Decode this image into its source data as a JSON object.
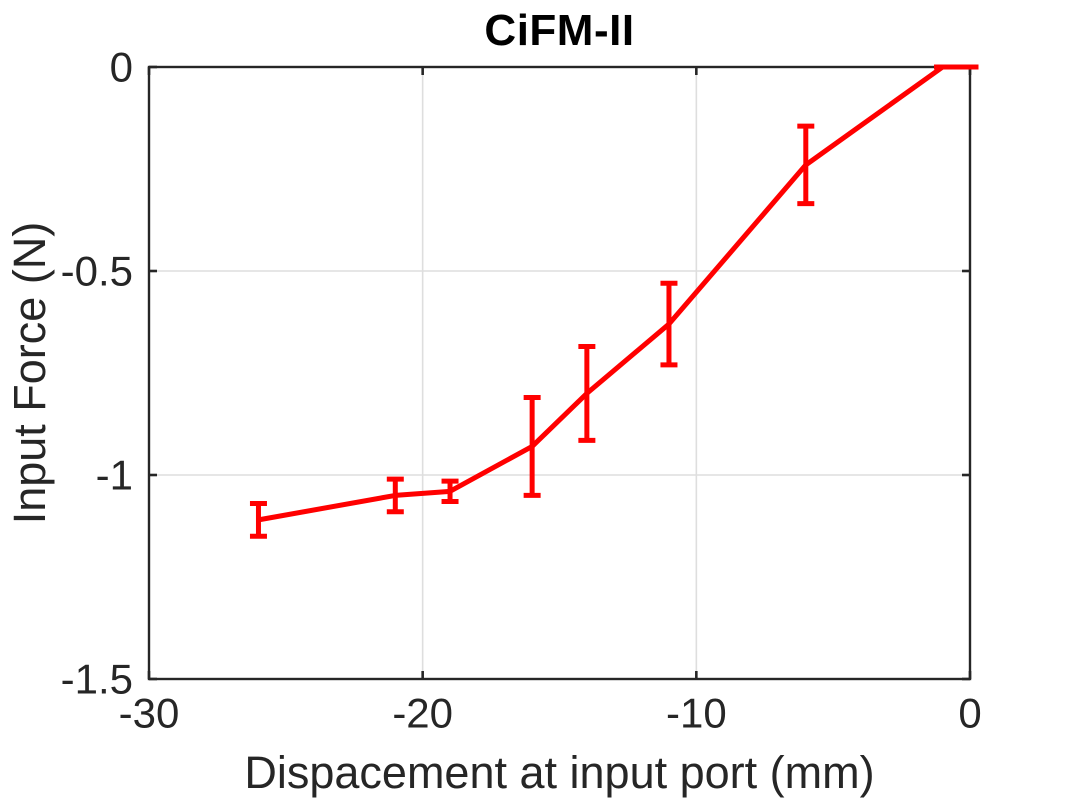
{
  "chart_data": {
    "type": "line",
    "title": "CiFM-II",
    "xlabel": "Dispacement at input port (mm)",
    "ylabel": "Input Force (N)",
    "xlim": [
      -30,
      0
    ],
    "ylim": [
      -1.5,
      0
    ],
    "grid": true,
    "legend": "none",
    "x_ticks": [
      {
        "value": -30,
        "label": "-30"
      },
      {
        "value": -20,
        "label": "-20"
      },
      {
        "value": -10,
        "label": "-10"
      },
      {
        "value": 0,
        "label": "0"
      }
    ],
    "y_ticks": [
      {
        "value": 0,
        "label": "0"
      },
      {
        "value": -0.5,
        "label": "-0.5"
      },
      {
        "value": -1,
        "label": "-1"
      },
      {
        "value": -1.5,
        "label": "-1.5"
      }
    ],
    "series": [
      {
        "name": "input-force-vs-displacement",
        "style": "errorbar-line",
        "color": "#ff0000",
        "points": [
          {
            "x": -26,
            "y": -1.11,
            "err": 0.04
          },
          {
            "x": -21,
            "y": -1.05,
            "err": 0.04
          },
          {
            "x": -19,
            "y": -1.04,
            "err": 0.025
          },
          {
            "x": -16,
            "y": -0.93,
            "err": 0.12
          },
          {
            "x": -14,
            "y": -0.8,
            "err": 0.115
          },
          {
            "x": -11,
            "y": -0.63,
            "err": 0.1
          },
          {
            "x": -6,
            "y": -0.24,
            "err": 0.095
          },
          {
            "x": -1,
            "y": 0.0,
            "err": 0.0
          },
          {
            "x": 0,
            "y": 0.0,
            "err": 0.0
          }
        ]
      }
    ],
    "colors": {
      "grid": "#dedede",
      "axis": "#262626",
      "tick_label": "#262626",
      "title": "#000000",
      "background": "#ffffff"
    }
  }
}
